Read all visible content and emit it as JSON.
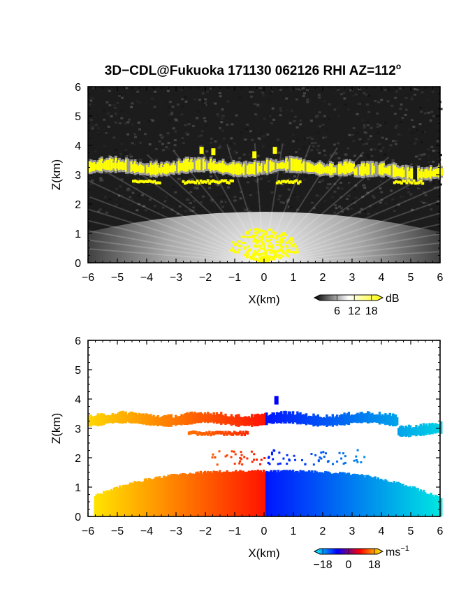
{
  "title": {
    "main": "3D−CDL@Fukuoka 171130 062126 RHI AZ=112",
    "degree": "o"
  },
  "chart_data": [
    {
      "type": "heatmap",
      "name": "backscatter",
      "xlabel": "X(km)",
      "ylabel": "Z(km)",
      "xlim": [
        -6,
        6
      ],
      "ylim": [
        0,
        6
      ],
      "xticks": [
        -6,
        -5,
        -4,
        -3,
        -2,
        -1,
        0,
        1,
        2,
        3,
        4,
        5,
        6
      ],
      "yticks": [
        0,
        1,
        2,
        3,
        4,
        5,
        6
      ],
      "colorbar": {
        "unit": "dB",
        "ticks": [
          "6",
          "12",
          "18"
        ],
        "range": [
          0,
          20
        ],
        "colors": [
          "#000000",
          "#ffffff",
          "#ffff00"
        ]
      },
      "features": {
        "cloud_layer_km": [
          3.0,
          3.5
        ],
        "lower_cloud_km": [
          2.7,
          3.0
        ],
        "bright_fan_top_km": 2.0,
        "sky_color": "#222222",
        "cloud_color": "#ffff00"
      }
    },
    {
      "type": "heatmap",
      "name": "doppler_velocity",
      "xlabel": "X(km)",
      "ylabel": "Z(km)",
      "xlim": [
        -6,
        6
      ],
      "ylim": [
        0,
        6
      ],
      "xticks": [
        -6,
        -5,
        -4,
        -3,
        -2,
        -1,
        0,
        1,
        2,
        3,
        4,
        5,
        6
      ],
      "yticks": [
        0,
        1,
        2,
        3,
        4,
        5,
        6
      ],
      "colorbar": {
        "unit": "ms",
        "unit_exp": "−1",
        "ticks": [
          "−18",
          "0",
          "18"
        ],
        "range": [
          -20,
          20
        ],
        "colors": [
          "#00ffff",
          "#0000ff",
          "#ff0000",
          "#ffff00"
        ]
      },
      "features": {
        "cloud_layer_km": [
          3.0,
          3.6
        ],
        "boundary_layer_top_km": 1.6,
        "sign_change_x_km": 0
      }
    }
  ]
}
